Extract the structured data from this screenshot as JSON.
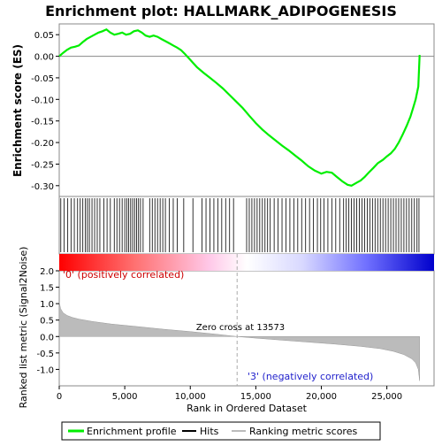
{
  "chart_data": {
    "type": "line",
    "title": "Enrichment plot: HALLMARK_ADIPOGENESIS",
    "x_axis": {
      "label": "Rank in Ordered Dataset",
      "range": [
        0,
        28600
      ],
      "ticks": [
        0,
        5000,
        10000,
        15000,
        20000,
        25000
      ],
      "tick_labels": [
        "0",
        "5,000",
        "10,000",
        "15,000",
        "20,000",
        "25,000"
      ]
    },
    "es_panel": {
      "ylabel": "Enrichment score (ES)",
      "ylim": [
        -0.325,
        0.075
      ],
      "yticks": [
        -0.3,
        -0.25,
        -0.2,
        -0.15,
        -0.1,
        -0.05,
        0.0,
        0.05
      ],
      "ytick_labels": [
        "-0.30",
        "-0.25",
        "-0.20",
        "-0.15",
        "-0.10",
        "-0.05",
        "0.00",
        "0.05"
      ],
      "line_color": "#00ee00",
      "series": {
        "name": "Enrichment profile",
        "x": [
          0,
          300,
          600,
          900,
          1200,
          1500,
          1800,
          2100,
          2400,
          2700,
          3000,
          3300,
          3600,
          3900,
          4200,
          4500,
          4800,
          5100,
          5400,
          5700,
          6000,
          6300,
          6600,
          6900,
          7200,
          7500,
          7800,
          8100,
          8400,
          8700,
          9000,
          9300,
          9600,
          9900,
          10200,
          10500,
          11000,
          11500,
          12000,
          12500,
          13000,
          13500,
          14000,
          14500,
          15000,
          15500,
          16000,
          16500,
          17000,
          17500,
          18000,
          18500,
          19000,
          19500,
          20000,
          20400,
          20800,
          21200,
          21600,
          22000,
          22300,
          22700,
          23000,
          23300,
          23600,
          24000,
          24300,
          24700,
          25000,
          25300,
          25600,
          25900,
          26200,
          26500,
          26800,
          27000,
          27200,
          27400,
          27500
        ],
        "y": [
          0.0,
          0.008,
          0.015,
          0.02,
          0.022,
          0.025,
          0.033,
          0.04,
          0.045,
          0.05,
          0.055,
          0.058,
          0.062,
          0.055,
          0.05,
          0.052,
          0.055,
          0.05,
          0.052,
          0.058,
          0.06,
          0.055,
          0.048,
          0.045,
          0.048,
          0.045,
          0.04,
          0.035,
          0.03,
          0.025,
          0.02,
          0.014,
          0.005,
          -0.005,
          -0.015,
          -0.025,
          -0.038,
          -0.05,
          -0.062,
          -0.075,
          -0.09,
          -0.105,
          -0.12,
          -0.138,
          -0.155,
          -0.17,
          -0.183,
          -0.195,
          -0.207,
          -0.218,
          -0.23,
          -0.242,
          -0.255,
          -0.265,
          -0.272,
          -0.268,
          -0.27,
          -0.28,
          -0.29,
          -0.298,
          -0.3,
          -0.293,
          -0.288,
          -0.28,
          -0.27,
          -0.258,
          -0.248,
          -0.24,
          -0.232,
          -0.225,
          -0.215,
          -0.2,
          -0.182,
          -0.162,
          -0.14,
          -0.12,
          -0.1,
          -0.07,
          0.003
        ]
      }
    },
    "hits_panel": {
      "label": "Hits",
      "hit_ranks": [
        120,
        380,
        650,
        900,
        1150,
        1400,
        1600,
        1800,
        2000,
        2150,
        2300,
        2500,
        2700,
        2900,
        3100,
        3400,
        3650,
        3900,
        4200,
        4400,
        4600,
        4800,
        5000,
        5150,
        5300,
        5450,
        5600,
        5750,
        5900,
        6050,
        6200,
        6400,
        6900,
        7100,
        7300,
        7500,
        7700,
        7900,
        8100,
        8400,
        8700,
        9000,
        9500,
        10200,
        10900,
        11200,
        11500,
        11800,
        12100,
        12400,
        12700,
        13000,
        13300,
        14300,
        14500,
        14700,
        14900,
        15100,
        15300,
        15500,
        15700,
        15900,
        16100,
        16400,
        16700,
        17000,
        17300,
        17600,
        17900,
        18200,
        18500,
        18800,
        19100,
        19400,
        19700,
        19950,
        20200,
        20500,
        20800,
        21100,
        21400,
        21700,
        21900,
        22100,
        22300,
        22500,
        22700,
        22900,
        23100,
        23300,
        23500,
        23700,
        23900,
        24100,
        24300,
        24500,
        24700,
        24900,
        25100,
        25300,
        25500,
        25700,
        25900,
        26100,
        26300,
        26500,
        26700,
        26900,
        27100,
        27300,
        27450
      ]
    },
    "gradient_bar": {
      "from_color": "#ff0000",
      "to_color": "#0000ff"
    },
    "metric_panel": {
      "ylabel": "Ranked list metric (Signal2Noise)",
      "ylim": [
        -1.5,
        2.0
      ],
      "yticks": [
        -1.0,
        -0.5,
        0.0,
        0.5,
        1.0,
        1.5,
        2.0
      ],
      "ytick_labels": [
        "-1.0",
        "-0.5",
        "0.0",
        "0.5",
        "1.0",
        "1.5",
        "2.0"
      ],
      "fill_color": "#bbbbbb",
      "series": {
        "name": "Ranking metric scores",
        "x": [
          0,
          100,
          300,
          600,
          1000,
          1500,
          2500,
          4000,
          6000,
          8000,
          10000,
          12000,
          13573,
          15000,
          17000,
          19000,
          21000,
          23000,
          24500,
          25500,
          26300,
          26900,
          27200,
          27400,
          27500
        ],
        "y": [
          1.05,
          0.85,
          0.72,
          0.64,
          0.58,
          0.53,
          0.46,
          0.38,
          0.3,
          0.22,
          0.15,
          0.07,
          0.0,
          -0.05,
          -0.11,
          -0.17,
          -0.23,
          -0.3,
          -0.37,
          -0.45,
          -0.55,
          -0.68,
          -0.8,
          -1.0,
          -1.35
        ]
      },
      "zero_cross": {
        "rank": 13573,
        "label": "Zero cross at 13573"
      },
      "pos_label": "'0' (positively correlated)",
      "neg_label": "'3' (negatively correlated)"
    },
    "legend": {
      "items": [
        {
          "label": "Enrichment profile",
          "color": "#00ee00"
        },
        {
          "label": "Hits",
          "color": "#000000"
        },
        {
          "label": "Ranking metric scores",
          "color": "#bbbbbb"
        }
      ]
    }
  }
}
